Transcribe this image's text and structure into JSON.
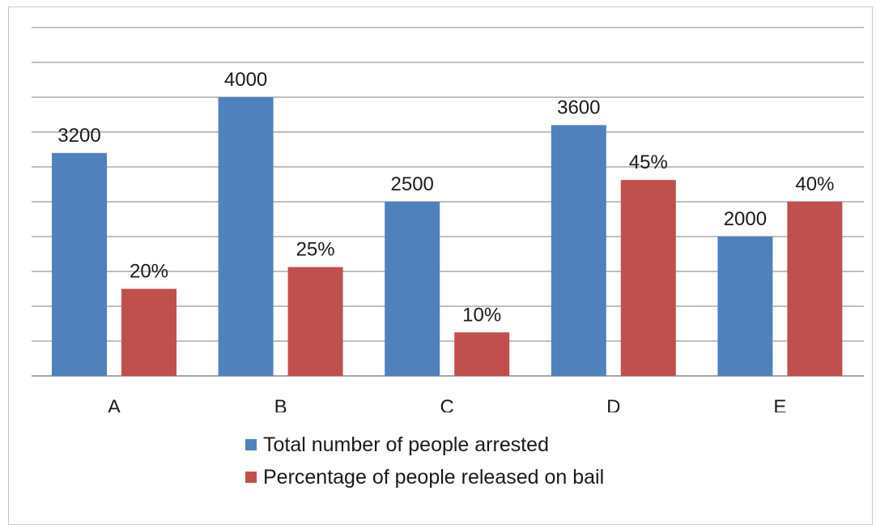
{
  "chart_data": {
    "type": "bar",
    "title": "",
    "xlabel": "",
    "ylabel": "",
    "categories": [
      "A",
      "B",
      "C",
      "D",
      "E"
    ],
    "series": [
      {
        "name": "Total number of people arrested",
        "color": "#4f81bd",
        "values": [
          3200,
          4000,
          2500,
          3600,
          2000
        ],
        "labels": [
          "3200",
          "4000",
          "2500",
          "3600",
          "2000"
        ],
        "ylim": [
          0,
          5000
        ]
      },
      {
        "name": "Percentage of people released on bail",
        "color": "#c0504d",
        "values": [
          20,
          25,
          10,
          45,
          40
        ],
        "labels": [
          "20%",
          "25%",
          "10%",
          "45%",
          "40%"
        ],
        "ylim": [
          0,
          80
        ]
      }
    ],
    "grid": true,
    "legend_position": "bottom"
  }
}
